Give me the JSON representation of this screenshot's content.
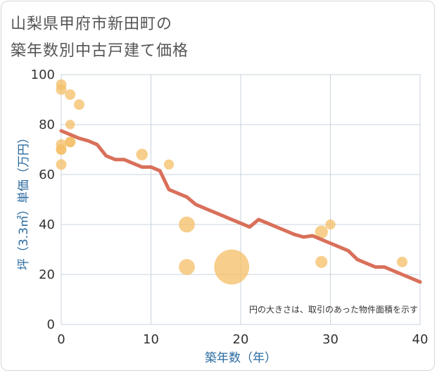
{
  "title_line1": "山梨県甲府市新田町の",
  "title_line2": "築年数別中古戸建て価格",
  "chart_data": {
    "type": "scatter",
    "title": "山梨県甲府市新田町の築年数別中古戸建て価格",
    "xlabel": "築年数（年）",
    "ylabel": "坪（3.3㎡）単価（万円）",
    "xlim": [
      0,
      40
    ],
    "ylim": [
      0,
      100
    ],
    "xticks": [
      0,
      10,
      20,
      30,
      40
    ],
    "yticks": [
      0,
      20,
      40,
      60,
      80,
      100
    ],
    "grid": true,
    "note": "円の大きさは、取引のあった物件面積を示す",
    "bubble_color": "#f5c06a",
    "line_color": "#d9705a",
    "points": [
      {
        "x": 0,
        "y": 96,
        "size": 1
      },
      {
        "x": 0,
        "y": 94,
        "size": 1
      },
      {
        "x": 0,
        "y": 72,
        "size": 1
      },
      {
        "x": 0,
        "y": 70,
        "size": 1
      },
      {
        "x": 0,
        "y": 70,
        "size": 1
      },
      {
        "x": 0,
        "y": 64,
        "size": 1
      },
      {
        "x": 1,
        "y": 92,
        "size": 1
      },
      {
        "x": 1,
        "y": 80,
        "size": 0.8
      },
      {
        "x": 1,
        "y": 73,
        "size": 1
      },
      {
        "x": 1,
        "y": 73,
        "size": 1
      },
      {
        "x": 2,
        "y": 88,
        "size": 1
      },
      {
        "x": 9,
        "y": 68,
        "size": 1.2
      },
      {
        "x": 12,
        "y": 64,
        "size": 0.9
      },
      {
        "x": 14,
        "y": 40,
        "size": 2.3
      },
      {
        "x": 14,
        "y": 23,
        "size": 2.3
      },
      {
        "x": 19,
        "y": 23,
        "size": 11
      },
      {
        "x": 29,
        "y": 37,
        "size": 1.5
      },
      {
        "x": 29,
        "y": 25,
        "size": 1.3
      },
      {
        "x": 30,
        "y": 40,
        "size": 0.9
      },
      {
        "x": 38,
        "y": 25,
        "size": 1
      }
    ],
    "trend_line": {
      "x": [
        0,
        1,
        2,
        3,
        4,
        5,
        6,
        7,
        8,
        9,
        10,
        11,
        12,
        13,
        14,
        15,
        16,
        17,
        18,
        19,
        20,
        21,
        22,
        23,
        24,
        25,
        26,
        27,
        28,
        29,
        30,
        31,
        32,
        33,
        34,
        35,
        36,
        37,
        38,
        39,
        40
      ],
      "y": [
        77.5,
        76,
        74.5,
        73.5,
        72,
        67.5,
        66,
        66,
        64.5,
        63,
        63,
        61.5,
        54,
        52.5,
        51,
        48,
        46.5,
        45,
        43.5,
        42,
        40.5,
        39,
        42,
        40.5,
        39,
        37.5,
        36,
        35,
        35.5,
        34,
        32.5,
        31,
        29.5,
        26,
        24.5,
        23,
        23,
        21.5,
        20,
        18.5,
        17
      ]
    }
  }
}
